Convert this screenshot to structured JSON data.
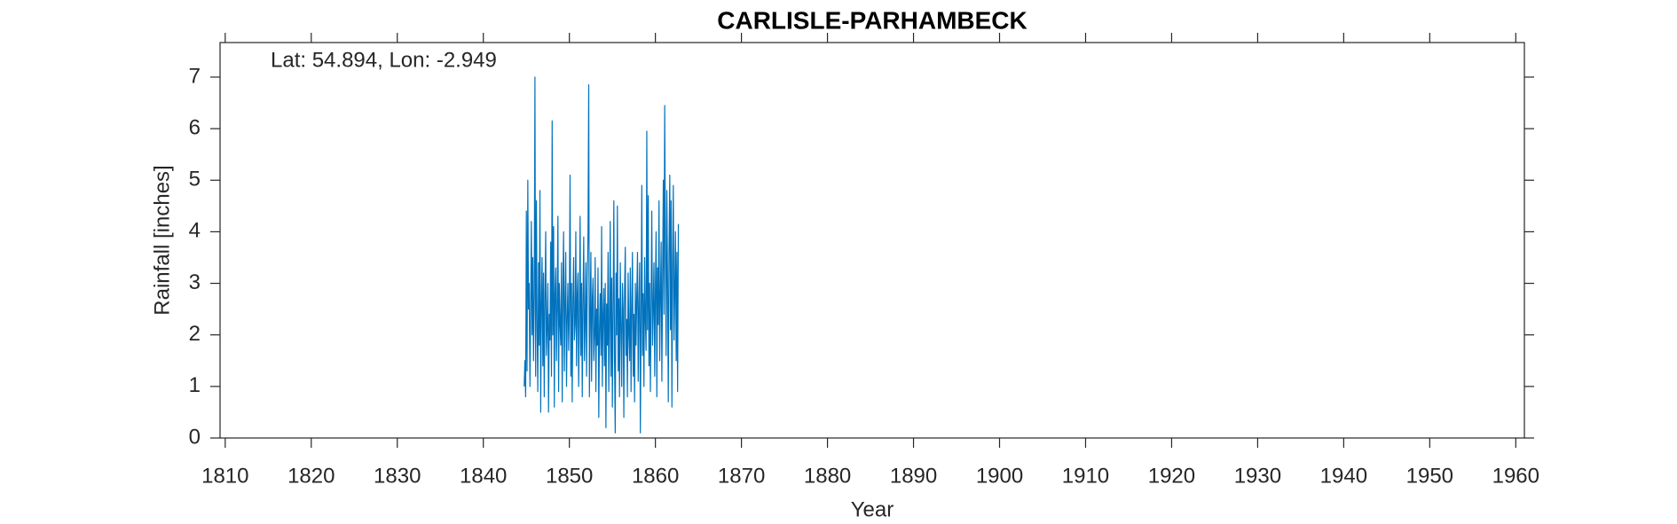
{
  "chart_data": {
    "type": "line",
    "title": "CARLISLE-PARHAMBECK",
    "annotation": "Lat: 54.894, Lon: -2.949",
    "xlabel": "Year",
    "ylabel": "Rainfall [inches]",
    "color": "#0072bd",
    "xlim": [
      1809.4,
      1961
    ],
    "ylim": [
      0,
      7.67
    ],
    "xticks": [
      1810,
      1820,
      1830,
      1840,
      1850,
      1860,
      1870,
      1880,
      1890,
      1900,
      1910,
      1920,
      1930,
      1940,
      1950,
      1960
    ],
    "yticks": [
      0,
      1,
      2,
      3,
      4,
      5,
      6,
      7
    ],
    "x": [
      1844.75,
      1844.83,
      1844.92,
      1845.0,
      1845.08,
      1845.17,
      1845.25,
      1845.33,
      1845.42,
      1845.5,
      1845.58,
      1845.67,
      1845.75,
      1845.83,
      1845.92,
      1846.0,
      1846.08,
      1846.17,
      1846.25,
      1846.33,
      1846.42,
      1846.5,
      1846.58,
      1846.67,
      1846.75,
      1846.83,
      1846.92,
      1847.0,
      1847.08,
      1847.17,
      1847.25,
      1847.33,
      1847.42,
      1847.5,
      1847.58,
      1847.67,
      1847.75,
      1847.83,
      1847.92,
      1848.0,
      1848.08,
      1848.17,
      1848.25,
      1848.33,
      1848.42,
      1848.5,
      1848.58,
      1848.67,
      1848.75,
      1848.83,
      1848.92,
      1849.0,
      1849.08,
      1849.17,
      1849.25,
      1849.33,
      1849.42,
      1849.5,
      1849.58,
      1849.67,
      1849.75,
      1849.83,
      1849.92,
      1850.0,
      1850.08,
      1850.17,
      1850.25,
      1850.33,
      1850.42,
      1850.5,
      1850.58,
      1850.67,
      1850.75,
      1850.83,
      1850.92,
      1851.0,
      1851.08,
      1851.17,
      1851.25,
      1851.33,
      1851.42,
      1851.5,
      1851.58,
      1851.67,
      1851.75,
      1851.83,
      1851.92,
      1852.0,
      1852.08,
      1852.17,
      1852.25,
      1852.33,
      1852.42,
      1852.5,
      1852.58,
      1852.67,
      1852.75,
      1852.83,
      1852.92,
      1853.0,
      1853.08,
      1853.17,
      1853.25,
      1853.33,
      1853.42,
      1853.5,
      1853.58,
      1853.67,
      1853.75,
      1853.83,
      1853.92,
      1854.0,
      1854.08,
      1854.17,
      1854.25,
      1854.33,
      1854.42,
      1854.5,
      1854.58,
      1854.67,
      1854.75,
      1854.83,
      1854.92,
      1855.0,
      1855.08,
      1855.17,
      1855.25,
      1855.33,
      1855.42,
      1855.5,
      1855.58,
      1855.67,
      1855.75,
      1855.83,
      1855.92,
      1856.0,
      1856.08,
      1856.17,
      1856.25,
      1856.33,
      1856.42,
      1856.5,
      1856.58,
      1856.67,
      1856.75,
      1856.83,
      1856.92,
      1857.0,
      1857.08,
      1857.17,
      1857.25,
      1857.33,
      1857.42,
      1857.5,
      1857.58,
      1857.67,
      1857.75,
      1857.83,
      1857.92,
      1858.0,
      1858.08,
      1858.17,
      1858.25,
      1858.33,
      1858.42,
      1858.5,
      1858.58,
      1858.67,
      1858.75,
      1858.83,
      1858.92,
      1859.0,
      1859.08,
      1859.17,
      1859.25,
      1859.33,
      1859.42,
      1859.5,
      1859.58,
      1859.67,
      1859.75,
      1859.83,
      1859.92,
      1860.0,
      1860.08,
      1860.17,
      1860.25,
      1860.33,
      1860.42,
      1860.5,
      1860.58,
      1860.67,
      1860.75,
      1860.83,
      1860.92,
      1861.0,
      1861.08,
      1861.17,
      1861.25,
      1861.33,
      1861.42,
      1861.5,
      1861.58,
      1861.67,
      1861.75,
      1861.83,
      1861.92,
      1862.0,
      1862.08,
      1862.17,
      1862.25,
      1862.33,
      1862.42,
      1862.5,
      1862.58,
      1862.67
    ],
    "values": [
      1.0,
      1.5,
      0.8,
      4.4,
      1.3,
      5.0,
      2.5,
      3.0,
      1.0,
      2.4,
      4.2,
      2.0,
      3.5,
      1.5,
      2.8,
      7.0,
      1.2,
      4.6,
      2.2,
      0.9,
      3.4,
      1.8,
      4.8,
      0.5,
      2.6,
      3.5,
      1.4,
      3.2,
      0.8,
      2.8,
      4.0,
      1.6,
      2.2,
      3.0,
      0.5,
      2.4,
      1.9,
      3.8,
      1.2,
      6.15,
      2.0,
      4.1,
      0.6,
      2.8,
      3.3,
      1.5,
      2.5,
      4.3,
      0.9,
      3.0,
      2.2,
      1.8,
      3.4,
      0.7,
      2.9,
      4.0,
      1.3,
      2.6,
      3.6,
      1.0,
      2.3,
      3.0,
      1.7,
      2.5,
      5.1,
      1.2,
      3.0,
      0.7,
      2.7,
      3.5,
      1.9,
      2.2,
      4.0,
      1.4,
      2.8,
      3.2,
      1.0,
      2.4,
      4.3,
      1.6,
      3.0,
      0.8,
      2.6,
      3.9,
      1.5,
      2.2,
      3.4,
      1.2,
      2.9,
      4.0,
      6.85,
      0.8,
      2.3,
      3.6,
      1.1,
      2.7,
      3.1,
      1.5,
      2.0,
      3.5,
      0.9,
      2.5,
      1.8,
      3.3,
      0.4,
      2.1,
      2.8,
      1.6,
      4.1,
      1.0,
      2.4,
      2.9,
      1.4,
      3.0,
      0.2,
      2.6,
      1.8,
      3.6,
      0.9,
      2.3,
      4.2,
      1.2,
      3.1,
      0.6,
      2.4,
      4.6,
      1.5,
      0.1,
      3.2,
      2.0,
      4.5,
      1.3,
      2.7,
      0.8,
      3.4,
      2.2,
      1.0,
      3.0,
      2.5,
      0.4,
      2.9,
      3.7,
      1.6,
      2.3,
      0.8,
      3.2,
      2.0,
      1.5,
      3.3,
      0.9,
      2.6,
      3.6,
      1.2,
      2.4,
      0.7,
      3.0,
      1.8,
      2.7,
      3.6,
      1.1,
      2.5,
      3.4,
      0.1,
      2.2,
      4.9,
      1.6,
      2.8,
      1.0,
      3.5,
      2.3,
      1.7,
      5.95,
      2.1,
      4.7,
      1.4,
      3.0,
      0.9,
      2.6,
      4.4,
      1.8,
      2.5,
      3.4,
      1.2,
      2.9,
      4.0,
      0.8,
      3.3,
      2.2,
      4.6,
      1.5,
      2.7,
      3.8,
      1.1,
      3.0,
      5.0,
      2.4,
      6.45,
      3.5,
      1.6,
      4.8,
      2.9,
      0.7,
      3.6,
      5.1,
      2.1,
      4.6,
      0.6,
      3.3,
      4.9,
      1.9,
      2.8,
      4.0,
      1.5,
      3.6,
      0.9,
      4.15
    ]
  }
}
